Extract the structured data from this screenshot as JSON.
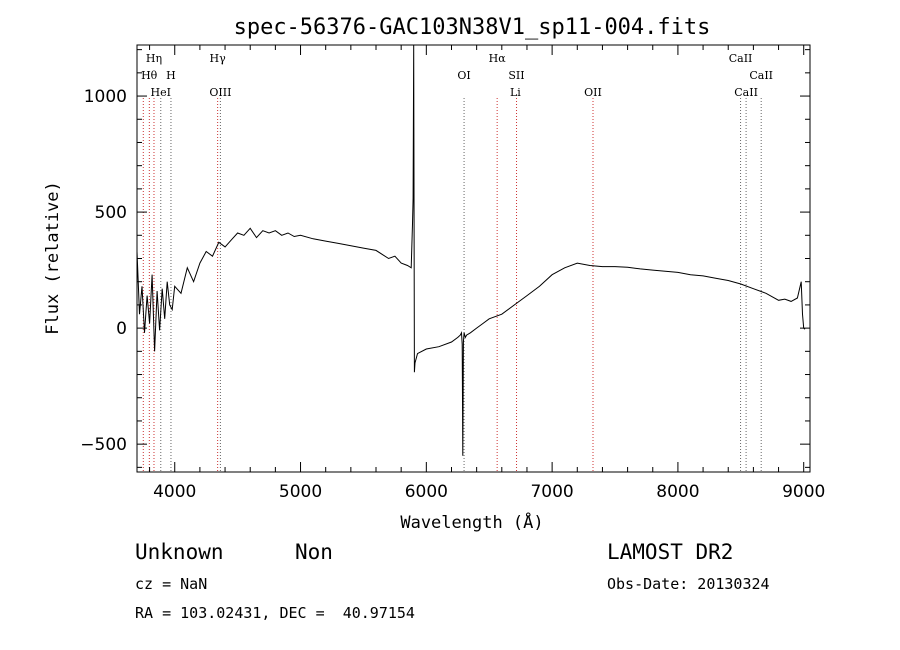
{
  "chart_data": {
    "type": "line",
    "title": "spec-56376-GAC103N38V1_sp11-004.fits",
    "xlabel": "Wavelength (Å)",
    "ylabel": "Flux (relative)",
    "xlim": [
      3700,
      9050
    ],
    "ylim": [
      -620,
      1220
    ],
    "xticks": [
      4000,
      5000,
      6000,
      7000,
      8000,
      9000
    ],
    "yticks": [
      -500,
      0,
      500,
      1000
    ],
    "grid": false,
    "series": [
      {
        "x": [
          3700,
          3720,
          3740,
          3760,
          3780,
          3800,
          3820,
          3840,
          3860,
          3880,
          3900,
          3920,
          3940,
          3960,
          3980,
          4000,
          4050,
          4100,
          4150,
          4200,
          4250,
          4300,
          4350,
          4400,
          4450,
          4500,
          4550,
          4600,
          4650,
          4700,
          4750,
          4800,
          4850,
          4900,
          4950,
          5000,
          5100,
          5200,
          5300,
          5400,
          5500,
          5600,
          5700,
          5750,
          5800,
          5850,
          5880,
          5890,
          5895,
          5900,
          5905,
          5910,
          5930,
          6000,
          6100,
          6200,
          6250,
          6270,
          6280,
          6285,
          6290,
          6295,
          6300,
          6310,
          6320,
          6350,
          6400,
          6450,
          6500,
          6600,
          6700,
          6800,
          6900,
          7000,
          7100,
          7200,
          7300,
          7400,
          7500,
          7600,
          7700,
          7800,
          7900,
          8000,
          8100,
          8200,
          8300,
          8400,
          8500,
          8600,
          8700,
          8800,
          8850,
          8900,
          8950,
          8980,
          8990,
          9000,
          9010
        ],
        "y": [
          330,
          60,
          180,
          -20,
          140,
          20,
          230,
          -100,
          160,
          -10,
          170,
          40,
          200,
          100,
          80,
          180,
          150,
          260,
          200,
          280,
          330,
          310,
          370,
          350,
          380,
          410,
          400,
          430,
          390,
          420,
          410,
          420,
          400,
          410,
          395,
          400,
          385,
          375,
          365,
          355,
          345,
          335,
          300,
          310,
          280,
          270,
          260,
          450,
          560,
          1220,
          -190,
          -150,
          -110,
          -90,
          -80,
          -60,
          -40,
          -30,
          -20,
          -70,
          -550,
          -60,
          -20,
          -40,
          -30,
          -20,
          0,
          20,
          40,
          60,
          100,
          140,
          180,
          230,
          260,
          280,
          270,
          265,
          265,
          262,
          255,
          250,
          245,
          240,
          230,
          225,
          215,
          205,
          190,
          170,
          150,
          120,
          125,
          115,
          130,
          200,
          60,
          0,
          -5
        ]
      }
    ],
    "line_labels": [
      {
        "label": "Hη",
        "wavelength": 3835,
        "row": 0
      },
      {
        "label": "Hθ",
        "wavelength": 3797,
        "row": 1
      },
      {
        "label": "H",
        "wavelength": 3970,
        "row": 1
      },
      {
        "label": "HeI",
        "wavelength": 3889,
        "row": 2
      },
      {
        "label": "Hγ",
        "wavelength": 4341,
        "row": 0
      },
      {
        "label": "OIII",
        "wavelength": 4363,
        "row": 2
      },
      {
        "label": "OI",
        "wavelength": 6300,
        "row": 1
      },
      {
        "label": "Hα",
        "wavelength": 6563,
        "row": 0
      },
      {
        "label": "SII",
        "wavelength": 6717,
        "row": 1
      },
      {
        "label": "Li",
        "wavelength": 6708,
        "row": 2
      },
      {
        "label": "OII",
        "wavelength": 7325,
        "row": 2
      },
      {
        "label": "CaII",
        "wavelength": 8498,
        "row": 0
      },
      {
        "label": "CaII",
        "wavelength": 8662,
        "row": 1
      },
      {
        "label": "CaII",
        "wavelength": 8542,
        "row": 2
      }
    ],
    "line_markers": [
      {
        "wavelength": 3750,
        "color": "#cc3333"
      },
      {
        "wavelength": 3798,
        "color": "#cc3333"
      },
      {
        "wavelength": 3835,
        "color": "#cc3333"
      },
      {
        "wavelength": 3889,
        "color": "#666666"
      },
      {
        "wavelength": 3970,
        "color": "#666666"
      },
      {
        "wavelength": 4341,
        "color": "#cc3333"
      },
      {
        "wavelength": 4363,
        "color": "#666666"
      },
      {
        "wavelength": 6300,
        "color": "#666666"
      },
      {
        "wavelength": 6563,
        "color": "#cc3333"
      },
      {
        "wavelength": 6717,
        "color": "#cc3333"
      },
      {
        "wavelength": 7325,
        "color": "#cc3333"
      },
      {
        "wavelength": 8498,
        "color": "#666666"
      },
      {
        "wavelength": 8542,
        "color": "#666666"
      },
      {
        "wavelength": 8662,
        "color": "#666666"
      }
    ]
  },
  "footer": {
    "class": "Unknown",
    "subclass": "Non",
    "cz": "cz = NaN",
    "coords": "RA = 103.02431, DEC =  40.97154",
    "survey": "LAMOST DR2",
    "obs_date": "Obs-Date: 20130324"
  }
}
